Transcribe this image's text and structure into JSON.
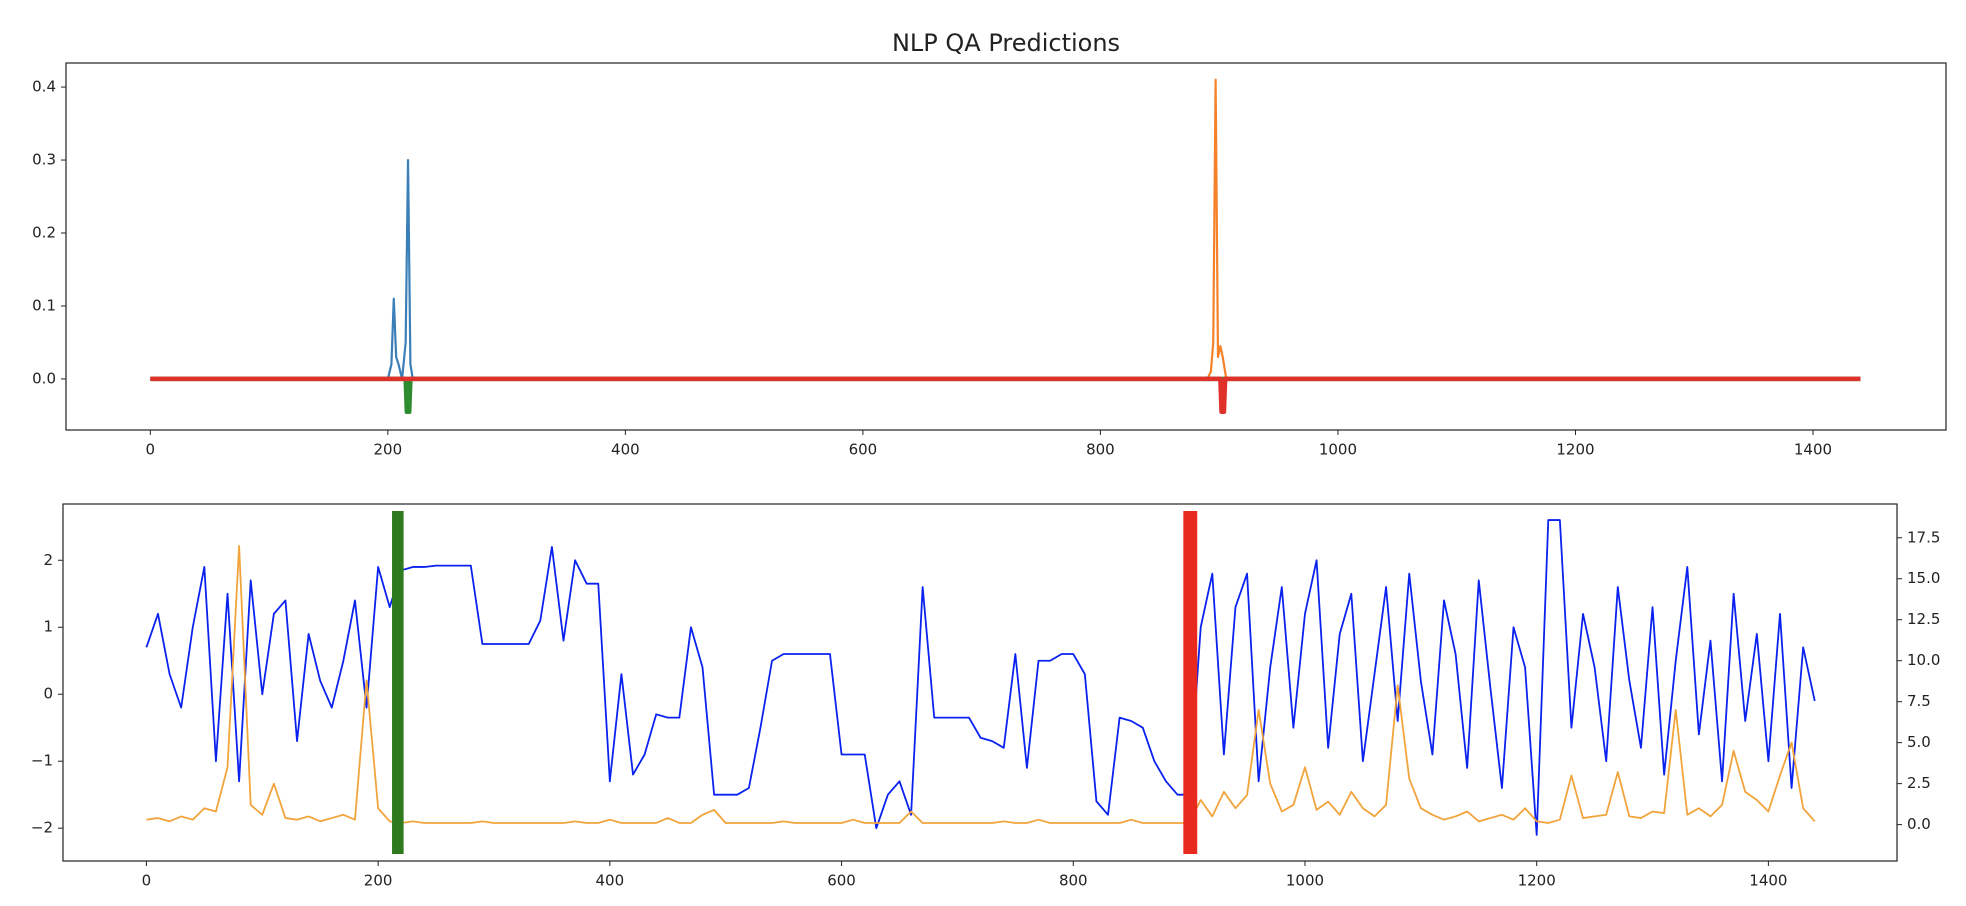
{
  "chart_data": [
    {
      "type": "line",
      "title": "NLP QA Predictions",
      "xlim": [
        -71,
        1512
      ],
      "xticks": [
        0,
        200,
        400,
        600,
        800,
        1000,
        1200,
        1400
      ],
      "ylim": [
        -0.07,
        0.433
      ],
      "yticks": [
        {
          "value": 0,
          "label": "0.0"
        },
        0.1,
        0.2,
        0.3,
        0.4
      ],
      "series": [
        {
          "color": "#3a7fb8",
          "x": [
            0,
            200,
            203,
            205,
            207,
            209,
            212,
            215,
            217,
            219,
            221,
            1440
          ],
          "values": [
            0,
            0,
            0.02,
            0.11,
            0.03,
            0.02,
            0,
            0.05,
            0.3,
            0.02,
            0,
            0
          ]
        },
        {
          "color": "#f5822a",
          "x": [
            0,
            890,
            893,
            895,
            897,
            899,
            901,
            903,
            906,
            1440
          ],
          "values": [
            0,
            0,
            0.01,
            0.05,
            0.41,
            0.03,
            0.045,
            0.03,
            0,
            0
          ]
        },
        {
          "color": "#2e8b2e",
          "x": [
            0,
            215,
            216,
            218,
            219,
            1440
          ],
          "values": [
            0,
            0,
            -0.045,
            -0.045,
            0,
            0
          ]
        },
        {
          "color": "#e0302a",
          "x": [
            0,
            901,
            902,
            904,
            905,
            1440
          ],
          "values": [
            0,
            0,
            -0.045,
            -0.045,
            0,
            0
          ]
        }
      ]
    },
    {
      "type": "line",
      "xlim": [
        -72,
        1511
      ],
      "xticks": [
        0,
        200,
        400,
        600,
        800,
        1000,
        1200,
        1400
      ],
      "ylim": [
        -2.49,
        2.84
      ],
      "yticks": [
        {
          "value": -2,
          "label": "−2"
        },
        {
          "value": -1,
          "label": "−1"
        },
        0,
        1,
        2
      ],
      "y2lim": [
        -2.22,
        19.56
      ],
      "y2ticks": [
        {
          "value": 0,
          "label": "0.0"
        },
        2.5,
        {
          "value": 5,
          "label": "5.0"
        },
        7.5,
        {
          "value": 10,
          "label": "10.0"
        },
        12.5,
        {
          "value": 15,
          "label": "15.0"
        },
        17.5
      ],
      "x": [
        0,
        10,
        20,
        30,
        40,
        50,
        60,
        70,
        80,
        90,
        100,
        110,
        120,
        130,
        140,
        150,
        160,
        170,
        180,
        190,
        200,
        210,
        220,
        230,
        240,
        250,
        260,
        270,
        280,
        290,
        300,
        310,
        320,
        330,
        340,
        350,
        360,
        370,
        380,
        390,
        400,
        410,
        420,
        430,
        440,
        450,
        460,
        470,
        480,
        490,
        500,
        510,
        520,
        530,
        540,
        550,
        560,
        570,
        580,
        590,
        600,
        610,
        620,
        630,
        640,
        650,
        660,
        670,
        680,
        690,
        700,
        710,
        720,
        730,
        740,
        750,
        760,
        770,
        780,
        790,
        800,
        810,
        820,
        830,
        840,
        850,
        860,
        870,
        880,
        890,
        900,
        910,
        920,
        930,
        940,
        950,
        960,
        970,
        980,
        990,
        1000,
        1010,
        1020,
        1030,
        1040,
        1050,
        1060,
        1070,
        1080,
        1090,
        1100,
        1110,
        1120,
        1130,
        1140,
        1150,
        1160,
        1170,
        1180,
        1190,
        1200,
        1210,
        1220,
        1230,
        1240,
        1250,
        1260,
        1270,
        1280,
        1290,
        1300,
        1310,
        1320,
        1330,
        1340,
        1350,
        1360,
        1370,
        1380,
        1390,
        1400,
        1410,
        1420,
        1430,
        1440
      ],
      "series": [
        {
          "color": "#0a22f0",
          "values": [
            0.7,
            1.2,
            0.3,
            -0.2,
            1.0,
            1.9,
            -1.0,
            1.5,
            -1.3,
            1.7,
            0.0,
            1.2,
            1.4,
            -0.7,
            0.9,
            0.2,
            -0.2,
            0.5,
            1.4,
            -0.2,
            1.9,
            1.3,
            1.85,
            1.9,
            1.9,
            1.92,
            1.92,
            1.92,
            1.92,
            0.75,
            0.75,
            0.75,
            0.75,
            0.75,
            1.1,
            2.2,
            0.8,
            2.0,
            1.65,
            1.65,
            -1.3,
            0.3,
            -1.2,
            -0.9,
            -0.3,
            -0.35,
            -0.35,
            1.0,
            0.4,
            -1.5,
            -1.5,
            -1.5,
            -1.4,
            -0.5,
            0.5,
            0.6,
            0.6,
            0.6,
            0.6,
            0.6,
            -0.9,
            -0.9,
            -0.9,
            -2.0,
            -1.5,
            -1.3,
            -1.8,
            1.6,
            -0.35,
            -0.35,
            -0.35,
            -0.35,
            -0.65,
            -0.7,
            -0.8,
            0.6,
            -1.1,
            0.5,
            0.5,
            0.6,
            0.6,
            0.3,
            -1.6,
            -1.8,
            -0.35,
            -0.4,
            -0.5,
            -1.0,
            -1.3,
            -1.5,
            -1.5,
            1.0,
            1.8,
            -0.9,
            1.3,
            1.8,
            -1.3,
            0.4,
            1.6,
            -0.5,
            1.2,
            2.0,
            -0.8,
            0.9,
            1.5,
            -1.0,
            0.3,
            1.6,
            -0.4,
            1.8,
            0.2,
            -0.9,
            1.4,
            0.6,
            -1.1,
            1.7,
            0.1,
            -1.4,
            1.0,
            0.4,
            -2.1,
            2.6,
            2.6,
            -0.5,
            1.2,
            0.4,
            -1.0,
            1.6,
            0.2,
            -0.8,
            1.3,
            -1.2,
            0.5,
            1.9,
            -0.6,
            0.8,
            -1.3,
            1.5,
            -0.4,
            0.9,
            -1.0,
            1.2,
            -1.4,
            0.7,
            -0.1
          ]
        },
        {
          "color": "#f2a43c",
          "axis": "y2",
          "values": [
            0.3,
            0.4,
            0.2,
            0.5,
            0.3,
            1.0,
            0.8,
            3.5,
            17.0,
            1.2,
            0.6,
            2.5,
            0.4,
            0.3,
            0.5,
            0.2,
            0.4,
            0.6,
            0.3,
            8.8,
            1.0,
            0.2,
            0.1,
            0.2,
            0.1,
            0.1,
            0.1,
            0.1,
            0.1,
            0.2,
            0.1,
            0.1,
            0.1,
            0.1,
            0.1,
            0.1,
            0.1,
            0.2,
            0.1,
            0.1,
            0.3,
            0.1,
            0.1,
            0.1,
            0.1,
            0.4,
            0.1,
            0.1,
            0.6,
            0.9,
            0.1,
            0.1,
            0.1,
            0.1,
            0.1,
            0.2,
            0.1,
            0.1,
            0.1,
            0.1,
            0.1,
            0.3,
            0.1,
            0.1,
            0.1,
            0.1,
            0.8,
            0.1,
            0.1,
            0.1,
            0.1,
            0.1,
            0.1,
            0.1,
            0.2,
            0.1,
            0.1,
            0.3,
            0.1,
            0.1,
            0.1,
            0.1,
            0.1,
            0.1,
            0.1,
            0.3,
            0.1,
            0.1,
            0.1,
            0.1,
            0.1,
            1.5,
            0.5,
            2.0,
            1.0,
            1.8,
            7.0,
            2.5,
            0.8,
            1.2,
            3.5,
            0.9,
            1.4,
            0.6,
            2.0,
            1.0,
            0.5,
            1.2,
            8.5,
            2.8,
            1.0,
            0.6,
            0.3,
            0.5,
            0.8,
            0.2,
            0.4,
            0.6,
            0.3,
            1.0,
            0.2,
            0.1,
            0.3,
            3.0,
            0.4,
            0.5,
            0.6,
            3.2,
            0.5,
            0.4,
            0.8,
            0.7,
            7.0,
            0.6,
            1.0,
            0.5,
            1.2,
            4.5,
            2.0,
            1.5,
            0.8,
            3.0,
            5.0,
            1.0,
            0.2
          ]
        }
      ],
      "spans": [
        {
          "color": "#2e7a1f",
          "x": [
            212,
            222
          ]
        },
        {
          "color": "#e8291e",
          "x": [
            895,
            907
          ]
        }
      ]
    }
  ]
}
